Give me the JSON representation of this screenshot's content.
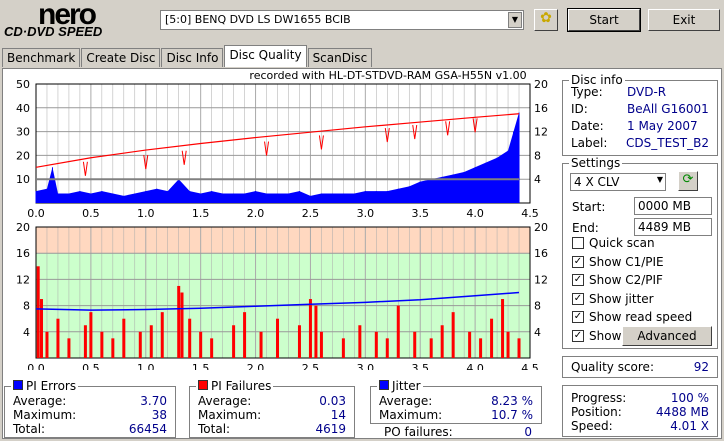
{
  "logo": {
    "line1": "nero",
    "line2": "CD·DVD SPEED"
  },
  "drive": {
    "selected": "[5:0]  BENQ DVD LS DW1655 BCIB"
  },
  "buttons": {
    "start": "Start",
    "exit": "Exit",
    "advanced": "Advanced"
  },
  "tabs": [
    "Benchmark",
    "Create Disc",
    "Disc Info",
    "Disc Quality",
    "ScanDisc"
  ],
  "active_tab": "Disc Quality",
  "disc_info": {
    "title": "Disc info",
    "rows": [
      {
        "label": "Type:",
        "value": "DVD-R"
      },
      {
        "label": "ID:",
        "value": "BeAll G16001"
      },
      {
        "label": "Date:",
        "value": "1 May 2007"
      },
      {
        "label": "Label:",
        "value": "CDS_TEST_B2"
      }
    ]
  },
  "settings": {
    "title": "Settings",
    "speed": "4 X CLV",
    "start_label": "Start:",
    "start": "0000 MB",
    "end_label": "End:",
    "end": "4489 MB",
    "checks": [
      {
        "label": "Quick scan",
        "checked": false
      },
      {
        "label": "Show C1/PIE",
        "checked": true
      },
      {
        "label": "Show C2/PIF",
        "checked": true
      },
      {
        "label": "Show jitter",
        "checked": true
      },
      {
        "label": "Show read speed",
        "checked": true
      },
      {
        "label": "Show write speed",
        "checked": true
      }
    ]
  },
  "quality": {
    "label": "Quality score:",
    "value": "92"
  },
  "progress": {
    "rows": [
      {
        "label": "Progress:",
        "value": "100 %"
      },
      {
        "label": "Position:",
        "value": "4488 MB"
      },
      {
        "label": "Speed:",
        "value": "4.01 X"
      }
    ]
  },
  "pi_errors": {
    "title": "PI Errors",
    "color": "#0000ff",
    "rows": [
      {
        "label": "Average:",
        "value": "3.70"
      },
      {
        "label": "Maximum:",
        "value": "38"
      },
      {
        "label": "Total:",
        "value": "66454"
      }
    ]
  },
  "pi_failures": {
    "title": "PI Failures",
    "color": "#ff0000",
    "rows": [
      {
        "label": "Average:",
        "value": "0.03"
      },
      {
        "label": "Maximum:",
        "value": "14"
      },
      {
        "label": "Total:",
        "value": "4619"
      }
    ]
  },
  "jitter": {
    "title": "Jitter",
    "color": "#0000ff",
    "rows": [
      {
        "label": "Average:",
        "value": "8.23 %"
      },
      {
        "label": "Maximum:",
        "value": "10.7 %"
      }
    ],
    "po_label": "PO failures:",
    "po_value": "0"
  },
  "chart_data": [
    {
      "type": "area",
      "title": "recorded with HL-DT-STDVD-RAM GSA-H55N v1.00",
      "xlim": [
        0,
        4.5
      ],
      "ylim": [
        0,
        50
      ],
      "y2lim": [
        0,
        20
      ],
      "xticks": [
        "0.0",
        "0.5",
        "1.0",
        "1.5",
        "2.0",
        "2.5",
        "3.0",
        "3.5",
        "4.0",
        "4.5"
      ],
      "yticks": [
        "10",
        "20",
        "30",
        "40",
        "50"
      ],
      "y2ticks": [
        "4",
        "8",
        "12",
        "16",
        "20"
      ],
      "series": [
        {
          "name": "PI Errors",
          "color": "#0000ff",
          "x": [
            0,
            0.1,
            0.15,
            0.2,
            0.3,
            0.4,
            0.5,
            0.6,
            0.7,
            0.8,
            0.9,
            1.0,
            1.1,
            1.2,
            1.3,
            1.4,
            1.5,
            1.6,
            1.7,
            1.8,
            1.9,
            2.0,
            2.1,
            2.2,
            2.3,
            2.4,
            2.5,
            2.6,
            2.7,
            2.8,
            2.9,
            3.0,
            3.1,
            3.2,
            3.3,
            3.4,
            3.5,
            3.6,
            3.7,
            3.8,
            3.9,
            4.0,
            4.1,
            4.2,
            4.3,
            4.35,
            4.4
          ],
          "y": [
            5,
            6,
            15,
            4,
            4,
            5,
            4,
            5,
            4,
            3,
            4,
            5,
            6,
            5,
            10,
            5,
            4,
            5,
            4,
            4,
            4,
            5,
            4,
            4,
            4,
            5,
            3,
            4,
            4,
            4,
            4,
            5,
            5,
            5,
            6,
            7,
            9,
            10,
            11,
            12,
            13,
            15,
            17,
            19,
            22,
            30,
            38
          ]
        },
        {
          "name": "Read speed (X)",
          "color": "#ff0000",
          "x": [
            0,
            0.5,
            1.0,
            1.5,
            2.0,
            2.5,
            3.0,
            3.5,
            4.0,
            4.4
          ],
          "y": [
            6.0,
            7.6,
            8.9,
            10.0,
            11.0,
            11.9,
            12.8,
            13.6,
            14.4,
            15.0
          ]
        },
        {
          "name": "Write speed (X)",
          "color": "#808080",
          "x": [
            0,
            4.4
          ],
          "y": [
            4,
            4
          ]
        }
      ]
    },
    {
      "type": "bar",
      "xlim": [
        0,
        4.5
      ],
      "ylim": [
        0,
        20
      ],
      "y2lim": [
        0,
        20
      ],
      "xticks": [
        "0.0",
        "0.5",
        "1.0",
        "1.5",
        "2.0",
        "2.5",
        "3.0",
        "3.5",
        "4.0",
        "4.5"
      ],
      "yticks": [
        "4",
        "8",
        "12",
        "16",
        "20"
      ],
      "y2ticks": [
        "4",
        "8",
        "12",
        "16",
        "20"
      ],
      "series": [
        {
          "name": "PI Failures",
          "color": "#ff0000",
          "x": [
            0.02,
            0.05,
            0.1,
            0.2,
            0.3,
            0.45,
            0.5,
            0.6,
            0.7,
            0.8,
            0.95,
            1.05,
            1.15,
            1.3,
            1.33,
            1.4,
            1.5,
            1.6,
            1.8,
            1.9,
            2.05,
            2.2,
            2.4,
            2.5,
            2.55,
            2.6,
            2.8,
            2.95,
            3.1,
            3.2,
            3.3,
            3.45,
            3.6,
            3.7,
            3.8,
            3.95,
            4.05,
            4.15,
            4.25,
            4.3,
            4.4
          ],
          "y": [
            14,
            9,
            4,
            6,
            3,
            5,
            7,
            4,
            3,
            6,
            4,
            5,
            7,
            11,
            10,
            6,
            4,
            3,
            5,
            7,
            4,
            6,
            5,
            9,
            8,
            4,
            3,
            5,
            4,
            3,
            8,
            4,
            3,
            5,
            7,
            4,
            3,
            6,
            9,
            4,
            3
          ]
        },
        {
          "name": "Jitter (%)",
          "color": "#0000ff",
          "x": [
            0,
            0.5,
            1.0,
            1.5,
            2.0,
            2.5,
            3.0,
            3.5,
            4.0,
            4.4
          ],
          "y": [
            7.5,
            7.3,
            7.4,
            7.6,
            7.9,
            8.2,
            8.5,
            8.9,
            9.5,
            10.0
          ]
        }
      ]
    }
  ]
}
